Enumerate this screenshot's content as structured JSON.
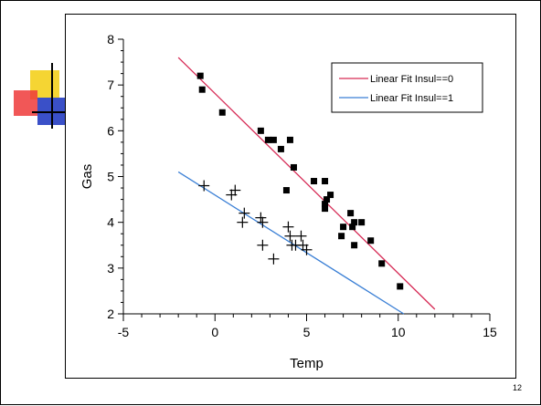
{
  "slide": {
    "page_number": "12"
  },
  "chart_data": {
    "type": "scatter",
    "xlabel": "Temp",
    "ylabel": "Gas",
    "xlim": [
      -5,
      15
    ],
    "ylim": [
      2,
      8
    ],
    "x_ticks": [
      "-5",
      "0",
      "5",
      "10",
      "15"
    ],
    "y_ticks": [
      "2",
      "3",
      "4",
      "5",
      "6",
      "7",
      "8"
    ],
    "grid": false,
    "legend_position": "top-right",
    "series": [
      {
        "marker": "square",
        "color": "#000000",
        "points": [
          [
            -0.8,
            7.2
          ],
          [
            -0.7,
            6.9
          ],
          [
            0.4,
            6.4
          ],
          [
            2.5,
            6.0
          ],
          [
            2.9,
            5.8
          ],
          [
            3.2,
            5.8
          ],
          [
            3.6,
            5.6
          ],
          [
            4.1,
            5.8
          ],
          [
            4.3,
            5.2
          ],
          [
            3.9,
            4.7
          ],
          [
            5.4,
            4.9
          ],
          [
            6.0,
            4.9
          ],
          [
            6.0,
            4.4
          ],
          [
            6.0,
            4.3
          ],
          [
            6.1,
            4.5
          ],
          [
            6.3,
            4.6
          ],
          [
            7.0,
            3.9
          ],
          [
            6.9,
            3.7
          ],
          [
            7.4,
            4.2
          ],
          [
            7.5,
            3.9
          ],
          [
            7.6,
            4.0
          ],
          [
            7.6,
            3.5
          ],
          [
            8.0,
            4.0
          ],
          [
            8.5,
            3.6
          ],
          [
            9.1,
            3.1
          ],
          [
            10.1,
            2.6
          ]
        ]
      },
      {
        "marker": "plus",
        "color": "#000000",
        "points": [
          [
            -0.6,
            4.8
          ],
          [
            0.9,
            4.6
          ],
          [
            1.1,
            4.7
          ],
          [
            1.5,
            4.0
          ],
          [
            1.6,
            4.2
          ],
          [
            2.5,
            4.1
          ],
          [
            2.6,
            4.0
          ],
          [
            2.6,
            3.5
          ],
          [
            3.2,
            3.2
          ],
          [
            4.0,
            3.9
          ],
          [
            4.1,
            3.7
          ],
          [
            4.2,
            3.5
          ],
          [
            4.4,
            3.5
          ],
          [
            4.7,
            3.7
          ],
          [
            4.8,
            3.5
          ],
          [
            5.0,
            3.4
          ]
        ]
      }
    ],
    "fit_lines": [
      {
        "name": "Linear Fit Insul==0",
        "color": "#d62a55",
        "x": [
          -2,
          12
        ],
        "y": [
          7.6,
          2.1
        ]
      },
      {
        "name": "Linear Fit Insul==1",
        "color": "#3a7fd5",
        "x": [
          -2,
          10.3
        ],
        "y": [
          5.1,
          2.0
        ]
      }
    ]
  },
  "logo_colors": {
    "yellow": "#f5d533",
    "red": "#ee3a3a",
    "blue": "#3a50c8"
  }
}
